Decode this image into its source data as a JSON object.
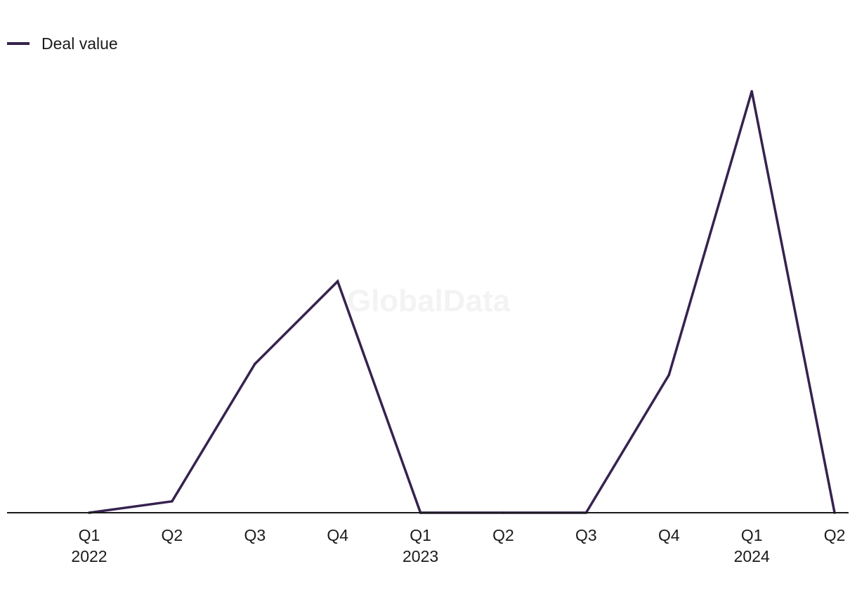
{
  "watermark": "GlobalData",
  "colors": {
    "series": "#36224f",
    "axis": "#1a1a1a",
    "watermark": "#f3f3f3"
  },
  "chart_data": {
    "type": "line",
    "title": "",
    "xlabel": "",
    "ylabel": "",
    "legend_position": "top-left",
    "grid": false,
    "categories": [
      [
        "Q1",
        "2022"
      ],
      [
        "Q2",
        ""
      ],
      [
        "Q3",
        ""
      ],
      [
        "Q4",
        ""
      ],
      [
        "Q1",
        "2023"
      ],
      [
        "Q2",
        ""
      ],
      [
        "Q3",
        ""
      ],
      [
        "Q4",
        ""
      ],
      [
        "Q1",
        "2024"
      ],
      [
        "Q2",
        ""
      ]
    ],
    "ylim": [
      0,
      100
    ],
    "series": [
      {
        "name": "Deal value",
        "values": [
          0,
          2.7,
          35.3,
          54.9,
          0,
          0,
          0,
          32.7,
          100,
          0
        ]
      }
    ]
  }
}
